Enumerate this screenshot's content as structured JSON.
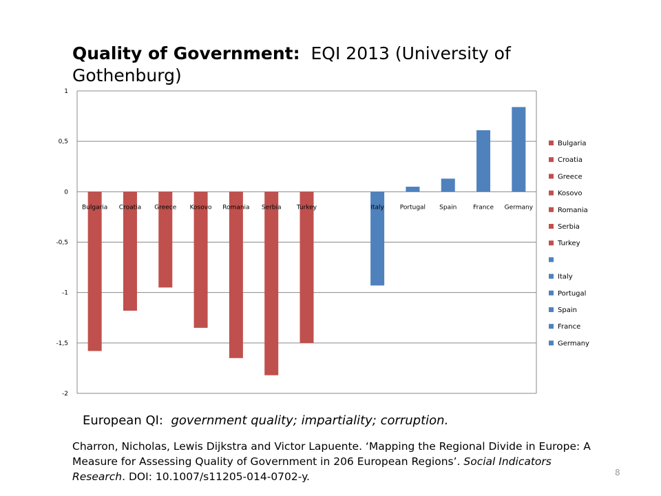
{
  "slide": {
    "title_bold": "Quality of Government:",
    "title_rest": "EQI 2013 (University of Gothenburg)",
    "subtitle_plain": "European QI:",
    "subtitle_italic": "government quality; impartiality; corruption.",
    "citation_part1": "Charron, Nicholas, Lewis Dijkstra and Victor Lapuente. ‘Mapping the Regional Divide in Europe: A Measure for Assessing Quality of Government in 206 European Regions’.",
    "citation_journal": "Social Indicators Research",
    "citation_part2": ". DOI: 10.1007/s11205-014-0702-y.",
    "page_number": "8"
  },
  "chart_data": {
    "type": "bar",
    "title": "",
    "xlabel": "",
    "ylabel": "",
    "ylim": [
      -2,
      1
    ],
    "yticks": [
      1,
      0.5,
      0,
      -0.5,
      -1,
      -1.5,
      -2
    ],
    "ytick_labels": [
      "1",
      "0,5",
      "0",
      "-0,5",
      "-1",
      "-1,5",
      "-2"
    ],
    "grid": true,
    "legend_position": "right",
    "colors": {
      "group_a": "#c0504d",
      "group_b": "#4f81bd"
    },
    "categories": [
      "Bulgaria",
      "Croatia",
      "Greece",
      "Kosovo",
      "Romania",
      "Serbia",
      "Turkey",
      "",
      "Italy",
      "Portugal",
      "Spain",
      "France",
      "Germany"
    ],
    "values": [
      -1.58,
      -1.18,
      -0.95,
      -1.35,
      -1.65,
      -1.82,
      -1.5,
      null,
      -0.93,
      0.05,
      0.13,
      0.61,
      0.84
    ],
    "bar_colors": [
      "#c0504d",
      "#c0504d",
      "#c0504d",
      "#c0504d",
      "#c0504d",
      "#c0504d",
      "#c0504d",
      "#4f81bd",
      "#4f81bd",
      "#4f81bd",
      "#4f81bd",
      "#4f81bd",
      "#4f81bd"
    ]
  }
}
